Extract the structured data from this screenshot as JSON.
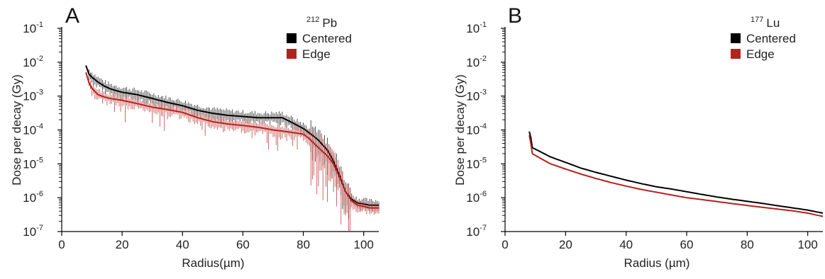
{
  "chart_data": [
    {
      "panel": "A",
      "type": "line",
      "isotope_mass": "212",
      "isotope_symbol": "Pb",
      "xlabel": "Radius(µm)",
      "ylabel": "Dose per decay (Gy)",
      "xlim": [
        0,
        105
      ],
      "ylim": [
        1e-07,
        0.1
      ],
      "yscale": "log",
      "xticks": [
        0,
        20,
        40,
        60,
        80,
        100
      ],
      "ytick_exponents": [
        -1,
        -2,
        -3,
        -4,
        -5,
        -6,
        -7
      ],
      "legend": "top-right",
      "series": [
        {
          "name": "Centered",
          "color": "#000000",
          "error_bars": true,
          "points": [
            [
              8,
              0.008
            ],
            [
              9,
              0.0045
            ],
            [
              10,
              0.0036
            ],
            [
              12,
              0.0026
            ],
            [
              14,
              0.002
            ],
            [
              16,
              0.00165
            ],
            [
              18,
              0.00145
            ],
            [
              20,
              0.0013
            ],
            [
              25,
              0.0011
            ],
            [
              30,
              0.00085
            ],
            [
              35,
              0.00065
            ],
            [
              40,
              0.00052
            ],
            [
              45,
              0.00038
            ],
            [
              50,
              0.00031
            ],
            [
              55,
              0.00027
            ],
            [
              60,
              0.00025
            ],
            [
              65,
              0.00023
            ],
            [
              70,
              0.00023
            ],
            [
              73,
              0.00023
            ],
            [
              76,
              0.00017
            ],
            [
              80,
              0.00011
            ],
            [
              83,
              7e-05
            ],
            [
              85,
              5e-05
            ],
            [
              88,
              2.5e-05
            ],
            [
              90,
              1.2e-05
            ],
            [
              92,
              4.5e-06
            ],
            [
              94,
              1.5e-06
            ],
            [
              96,
              9e-07
            ],
            [
              98,
              7e-07
            ],
            [
              100,
              6.5e-07
            ],
            [
              102,
              6e-07
            ],
            [
              105,
              6e-07
            ]
          ]
        },
        {
          "name": "Edge",
          "color": "#b5211c",
          "error_bars": true,
          "points": [
            [
              8,
              0.005
            ],
            [
              9,
              0.0025
            ],
            [
              10,
              0.0017
            ],
            [
              12,
              0.0011
            ],
            [
              14,
              0.00095
            ],
            [
              16,
              0.00085
            ],
            [
              20,
              0.00075
            ],
            [
              25,
              0.0006
            ],
            [
              30,
              0.00047
            ],
            [
              35,
              0.0004
            ],
            [
              40,
              0.00033
            ],
            [
              45,
              0.00023
            ],
            [
              50,
              0.000175
            ],
            [
              55,
              0.00015
            ],
            [
              60,
              0.000135
            ],
            [
              65,
              0.00012
            ],
            [
              70,
              0.0001
            ],
            [
              75,
              8.8e-05
            ],
            [
              80,
              7.5e-05
            ],
            [
              82,
              5.5e-05
            ],
            [
              85,
              3e-05
            ],
            [
              88,
              1.7e-05
            ],
            [
              90,
              1e-05
            ],
            [
              92,
              4e-06
            ],
            [
              94,
              1.5e-06
            ],
            [
              96,
              8e-07
            ],
            [
              98,
              6e-07
            ],
            [
              100,
              5.5e-07
            ],
            [
              102,
              5e-07
            ],
            [
              105,
              5e-07
            ]
          ]
        }
      ]
    },
    {
      "panel": "B",
      "type": "line",
      "isotope_mass": "177",
      "isotope_symbol": "Lu",
      "xlabel": "Radius (µm)",
      "ylabel": "Dose per decay (Gy)",
      "xlim": [
        0,
        105
      ],
      "ylim": [
        1e-07,
        0.1
      ],
      "yscale": "log",
      "xticks": [
        0,
        20,
        40,
        60,
        80,
        100
      ],
      "ytick_exponents": [
        -1,
        -2,
        -3,
        -4,
        -5,
        -6,
        -7
      ],
      "legend": "top-right",
      "series": [
        {
          "name": "Centered",
          "color": "#000000",
          "error_bars": false,
          "points": [
            [
              8,
              9e-05
            ],
            [
              8.5,
              6e-05
            ],
            [
              9,
              3e-05
            ],
            [
              12,
              2.2e-05
            ],
            [
              15,
              1.6e-05
            ],
            [
              20,
              1.1e-05
            ],
            [
              25,
              7.5e-06
            ],
            [
              30,
              5.6e-06
            ],
            [
              35,
              4.3e-06
            ],
            [
              40,
              3.3e-06
            ],
            [
              45,
              2.6e-06
            ],
            [
              50,
              2.1e-06
            ],
            [
              55,
              1.8e-06
            ],
            [
              60,
              1.5e-06
            ],
            [
              65,
              1.25e-06
            ],
            [
              70,
              1.05e-06
            ],
            [
              75,
              9e-07
            ],
            [
              80,
              7.8e-07
            ],
            [
              85,
              6.8e-07
            ],
            [
              90,
              5.8e-07
            ],
            [
              95,
              5e-07
            ],
            [
              100,
              4.3e-07
            ],
            [
              105,
              3.5e-07
            ]
          ]
        },
        {
          "name": "Edge",
          "color": "#b5211c",
          "error_bars": false,
          "points": [
            [
              8,
              7e-05
            ],
            [
              8.5,
              4e-05
            ],
            [
              9,
              2e-05
            ],
            [
              12,
              1.4e-05
            ],
            [
              15,
              1e-05
            ],
            [
              20,
              7e-06
            ],
            [
              25,
              5e-06
            ],
            [
              30,
              3.7e-06
            ],
            [
              35,
              2.8e-06
            ],
            [
              40,
              2.2e-06
            ],
            [
              45,
              1.75e-06
            ],
            [
              50,
              1.45e-06
            ],
            [
              55,
              1.2e-06
            ],
            [
              60,
              1e-06
            ],
            [
              65,
              8.8e-07
            ],
            [
              70,
              7.7e-07
            ],
            [
              75,
              6.7e-07
            ],
            [
              80,
              5.9e-07
            ],
            [
              85,
              5.2e-07
            ],
            [
              90,
              4.6e-07
            ],
            [
              95,
              4.1e-07
            ],
            [
              100,
              3.5e-07
            ],
            [
              105,
              2.8e-07
            ]
          ]
        }
      ]
    }
  ]
}
